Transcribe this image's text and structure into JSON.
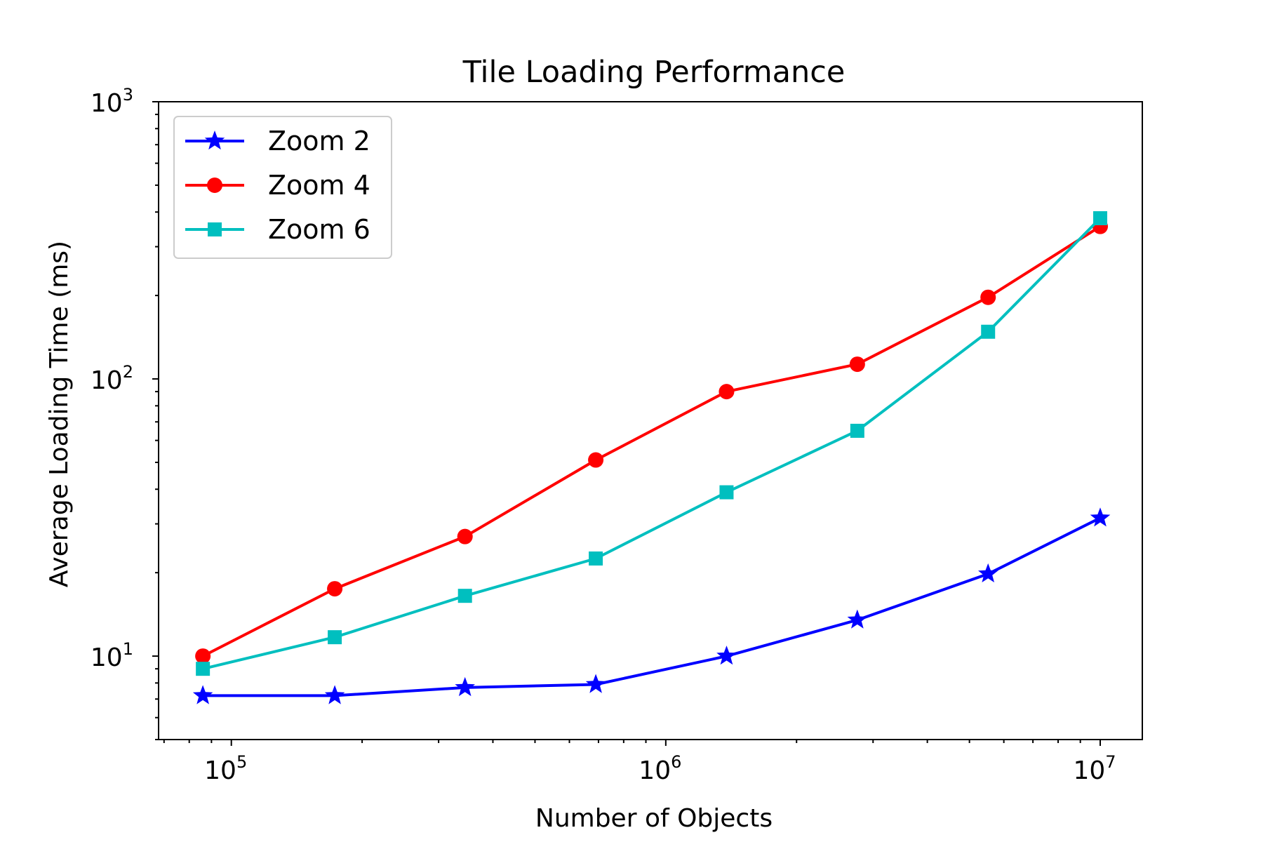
{
  "chart_data": {
    "type": "line",
    "title": "Tile Loading Performance",
    "xlabel": "Number of Objects",
    "ylabel": "Average Loading Time (ms)",
    "xscale": "log",
    "yscale": "log",
    "xlim": [
      68000,
      12500000
    ],
    "ylim": [
      5,
      1000
    ],
    "xticks": [
      {
        "value": 100000,
        "base": "10",
        "exp": "5"
      },
      {
        "value": 1000000,
        "base": "10",
        "exp": "6"
      },
      {
        "value": 10000000,
        "base": "10",
        "exp": "7"
      }
    ],
    "yticks": [
      {
        "value": 10,
        "base": "10",
        "exp": "1"
      },
      {
        "value": 100,
        "base": "10",
        "exp": "2"
      },
      {
        "value": 1000,
        "base": "10",
        "exp": "3"
      }
    ],
    "grid": false,
    "legend": "top-left",
    "x": [
      86000,
      173000,
      345000,
      690000,
      1380000,
      2760000,
      5520000,
      10000000
    ],
    "series": [
      {
        "name": "Zoom 2",
        "color": "#0000ff",
        "marker": "star",
        "values": [
          7.2,
          7.2,
          7.7,
          7.9,
          10.0,
          13.5,
          19.8,
          31.5
        ]
      },
      {
        "name": "Zoom 4",
        "color": "#ff0000",
        "marker": "circle",
        "values": [
          10.0,
          17.5,
          27.0,
          51.0,
          90.0,
          113.0,
          197.0,
          355.0
        ]
      },
      {
        "name": "Zoom 6",
        "color": "#00bfbf",
        "marker": "square",
        "values": [
          9.0,
          11.7,
          16.5,
          22.5,
          39.0,
          65.0,
          148.0,
          380.0
        ]
      }
    ]
  }
}
